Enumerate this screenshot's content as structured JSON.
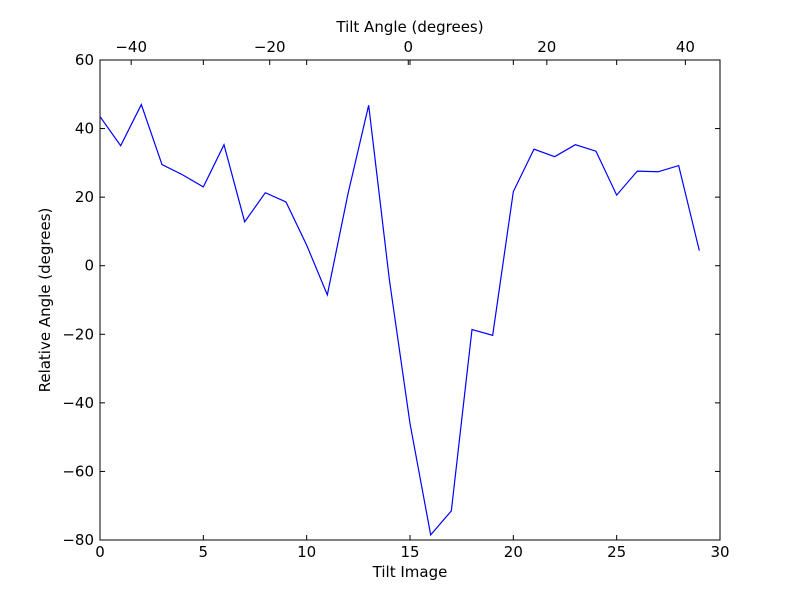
{
  "chart_data": {
    "type": "line",
    "xlabel": "Tilt Image",
    "ylabel": "Relative Angle (degrees)",
    "top_xlabel": "Tilt Angle (degrees)",
    "xlim": [
      0,
      30
    ],
    "ylim": [
      -80,
      60
    ],
    "top_xlim": [
      -44.5,
      45
    ],
    "x_ticks": [
      0,
      5,
      10,
      15,
      20,
      25,
      30
    ],
    "y_ticks": [
      -80,
      -60,
      -40,
      -20,
      0,
      20,
      40,
      60
    ],
    "top_x_ticks": [
      -40,
      -20,
      0,
      20,
      40
    ],
    "x_tick_labels": [
      "0",
      "5",
      "10",
      "15",
      "20",
      "25",
      "30"
    ],
    "y_tick_labels": [
      "−80",
      "−60",
      "−40",
      "−20",
      "0",
      "20",
      "40",
      "60"
    ],
    "top_x_tick_labels": [
      "−40",
      "−20",
      "0",
      "20",
      "40"
    ],
    "grid": false,
    "series": [
      {
        "color": "#0000ff",
        "x": [
          0,
          1,
          2,
          3,
          4,
          5,
          6,
          7,
          8,
          9,
          10,
          11,
          12,
          13,
          14,
          15,
          16,
          17,
          18,
          19,
          20,
          21,
          22,
          23,
          24,
          25,
          26,
          27,
          28,
          29
        ],
        "y": [
          43.5,
          35.0,
          47.0,
          29.5,
          26.5,
          23.0,
          35.3,
          12.8,
          21.3,
          18.6,
          6.0,
          -8.5,
          21.0,
          46.8,
          -4.0,
          -46.0,
          -78.5,
          -71.5,
          -18.6,
          -20.3,
          21.6,
          34.0,
          31.8,
          35.3,
          33.4,
          20.6,
          27.6,
          27.4,
          29.2,
          4.4
        ]
      }
    ]
  }
}
